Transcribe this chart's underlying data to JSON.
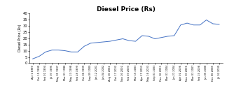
{
  "title": "Diesel Price (Rs)",
  "ylabel": "Diesel Price (Rs)",
  "line_color": "#4472C4",
  "background_color": "#ffffff",
  "ylim": [
    0,
    40
  ],
  "yticks": [
    0,
    5,
    10,
    15,
    20,
    25,
    30,
    35,
    40
  ],
  "labels": [
    "Apr 1 1989",
    "Oct 15 1990",
    "Feb 01 1994",
    "Jul 07 1995",
    "May 01 1997",
    "Mar 01 1998",
    "May 23 1998",
    "Feb 28 1999",
    "Oct 06 1999",
    "Sep 09 2000",
    "Jan 12 2001",
    "Jun 04 2002",
    "Aug 16 2002",
    "Oct 17 2002",
    "Nov 16 2002",
    "Feb 03 2003",
    "Mar 15 2003",
    "Apr 27 2003",
    "May 16 2003",
    "Sep 01 2003",
    "Dec 16 2003",
    "Mar 01 2004",
    "Jun 21 2004",
    "Apr 01 2006",
    "Nov 30 2006",
    "Mar 01 2007",
    "Feb 15 2008",
    "Jun 05 2008",
    "Dec 06 2008",
    "Jul 02 2009"
  ],
  "values": [
    3.5,
    5.5,
    9.0,
    10.5,
    10.5,
    10.0,
    9.0,
    9.0,
    13.5,
    16.0,
    16.5,
    17.0,
    17.5,
    18.5,
    19.5,
    18.0,
    17.5,
    22.0,
    21.5,
    19.5,
    20.5,
    21.5,
    22.0,
    30.5,
    32.0,
    30.5,
    30.5,
    34.5,
    31.5,
    31.0
  ]
}
